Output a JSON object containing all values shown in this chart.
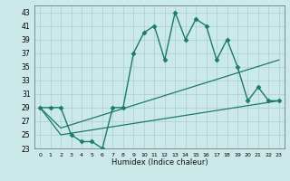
{
  "xlabel": "Humidex (Indice chaleur)",
  "xlim": [
    -0.5,
    23.5
  ],
  "ylim": [
    23,
    44
  ],
  "yticks": [
    23,
    25,
    27,
    29,
    31,
    33,
    35,
    37,
    39,
    41,
    43
  ],
  "xticks": [
    0,
    1,
    2,
    3,
    4,
    5,
    6,
    7,
    8,
    9,
    10,
    11,
    12,
    13,
    14,
    15,
    16,
    17,
    18,
    19,
    20,
    21,
    22,
    23
  ],
  "bg_color": "#cce9e9",
  "grid_color": "#aacfcf",
  "line_color": "#1a7a6e",
  "series": [
    {
      "x": [
        0,
        1,
        2,
        3,
        4,
        5,
        6,
        7,
        8,
        9,
        10,
        11,
        12,
        13,
        14,
        15,
        16,
        17,
        18,
        19,
        20,
        21,
        22,
        23
      ],
      "y": [
        29,
        29,
        29,
        25,
        24,
        24,
        23,
        29,
        29,
        37,
        40,
        41,
        36,
        43,
        39,
        42,
        41,
        36,
        39,
        35,
        30,
        32,
        30,
        30
      ],
      "marker": "D",
      "markersize": 2.5,
      "linewidth": 1.0
    },
    {
      "x": [
        0,
        2,
        23
      ],
      "y": [
        29,
        26,
        36
      ],
      "marker": null,
      "linewidth": 0.9
    },
    {
      "x": [
        0,
        2,
        23
      ],
      "y": [
        29,
        25,
        30
      ],
      "marker": null,
      "linewidth": 0.9
    }
  ]
}
